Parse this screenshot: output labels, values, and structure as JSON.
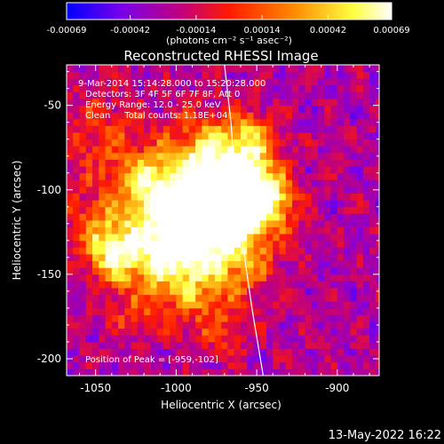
{
  "chart_data": {
    "type": "heatmap",
    "title": "Reconstructed RHESSI Image",
    "colorbar": {
      "tick_labels": [
        "-0.00069",
        "-0.00042",
        "-0.00014",
        "0.00014",
        "0.00042",
        "0.00069"
      ],
      "range": [
        -0.00069,
        0.00069
      ],
      "label": "(photons cm⁻² s⁻¹ asec⁻²)",
      "colors": [
        "#0000ff",
        "#7a00e8",
        "#c00080",
        "#ff1a00",
        "#ff8a00",
        "#ffff40",
        "#ffffff"
      ]
    },
    "info_lines": [
      "9-Mar-2014 15:14:28.000 to 15:20:28.000",
      "Detectors: 3F 4F 5F 6F 7F 8F, Att 0",
      "Energy Range: 12.0 - 25.0 keV",
      "Clean     Total counts: 1.18E+04"
    ],
    "peak_label": "Position of Peak = [-959,-102]",
    "xlabel": "Heliocentric X (arcsec)",
    "ylabel": "Heliocentric Y (arcsec)",
    "xlim": [
      -1068,
      -874
    ],
    "ylim": [
      -210,
      -26
    ],
    "xticks": [
      -1050,
      -1000,
      -950,
      -900
    ],
    "yticks": [
      -200,
      -150,
      -100,
      -50
    ],
    "xtick_labels": [
      "-1050",
      "-1000",
      "-950",
      "-900"
    ],
    "ytick_labels": [
      "-200",
      "-150",
      "-100",
      "-50"
    ],
    "peak": [
      -959,
      -102
    ],
    "limb_curve": [
      [
        -970,
        -26
      ],
      [
        -966,
        -60
      ],
      [
        -963,
        -100
      ],
      [
        -959,
        -130
      ],
      [
        -953,
        -170
      ],
      [
        -946,
        -210
      ]
    ]
  },
  "timestamp": "13-May-2022 16:22"
}
